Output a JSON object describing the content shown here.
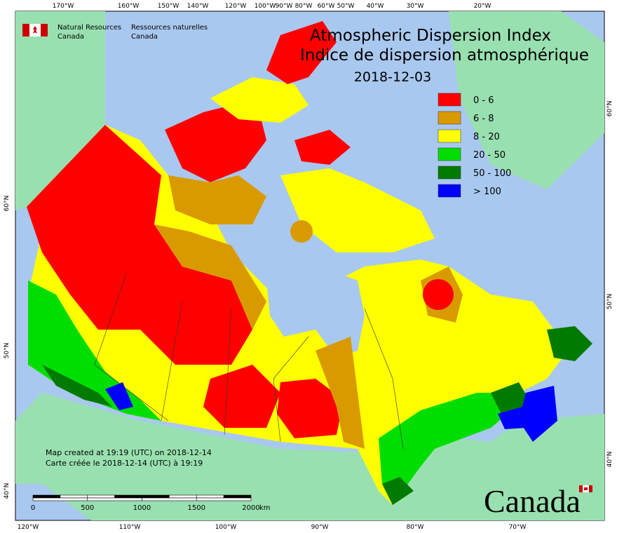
{
  "header": {
    "department_en": [
      "Natural Resources",
      "Canada"
    ],
    "department_fr": [
      "Ressources naturelles",
      "Canada"
    ]
  },
  "title": {
    "lines": [
      "Atmospheric Dispersion Index",
      "Indice de dispersion atmosphérique"
    ],
    "date": "2018-12-03"
  },
  "legend": {
    "items": [
      {
        "label": "0 - 6",
        "color": "#ff0000"
      },
      {
        "label": "6 - 8",
        "color": "#d99a00"
      },
      {
        "label": "8 - 20",
        "color": "#ffff00"
      },
      {
        "label": "20 - 50",
        "color": "#00dd00"
      },
      {
        "label": "50 - 100",
        "color": "#007a00"
      },
      {
        "label": "> 100",
        "color": "#0000ff"
      }
    ]
  },
  "graticule": {
    "top": [
      "170°W",
      "160°W",
      "150°W",
      "140°W",
      "120°W",
      "100°W",
      "90°W",
      "80°W",
      "60°W",
      "50°W",
      "40°W",
      "30°W",
      "20°W"
    ],
    "bottom": [
      "120°W",
      "110°W",
      "100°W",
      "90°W",
      "80°W",
      "70°W"
    ],
    "left": [
      "60°N",
      "50°N",
      "40°N"
    ],
    "right": [
      "60°N",
      "50°N",
      "40°N"
    ]
  },
  "scale_bar": {
    "labels": [
      0,
      500,
      1000,
      1500,
      2000
    ],
    "unit": "km"
  },
  "credits": [
    "Map created at 19:19 (UTC) on 2018-12-14",
    "Carte créée le 2018-12-14 (UTC) à 19:19"
  ],
  "wordmark": "Canada"
}
